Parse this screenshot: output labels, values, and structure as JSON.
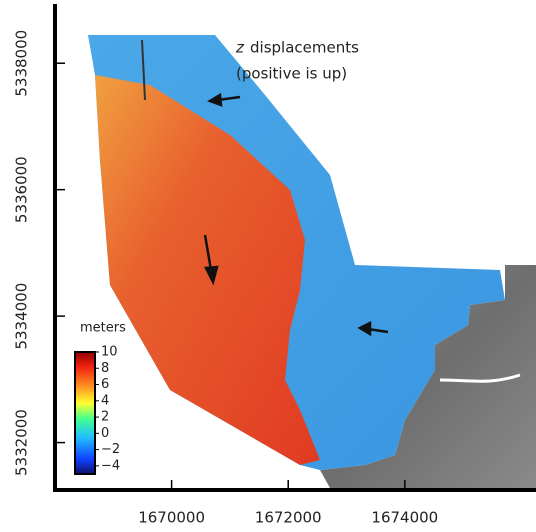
{
  "map": {
    "annotation": {
      "variable": "z",
      "line1": "displacements",
      "line2": "(positive is up)"
    },
    "x_axis": {
      "lim": [
        1668000,
        1676250
      ],
      "ticks": [
        1670000,
        1672000,
        1674000
      ]
    },
    "y_axis": {
      "lim": [
        5331250,
        5339000
      ],
      "ticks": [
        5332000,
        5334000,
        5336000,
        5338000
      ]
    },
    "colorbar": {
      "label": "meters",
      "lim": [
        -5,
        10
      ],
      "ticks": [
        10,
        8,
        6,
        4,
        2,
        0,
        {
          "value": -2,
          "label": "−2"
        },
        {
          "value": -4,
          "label": "−4"
        }
      ]
    }
  }
}
